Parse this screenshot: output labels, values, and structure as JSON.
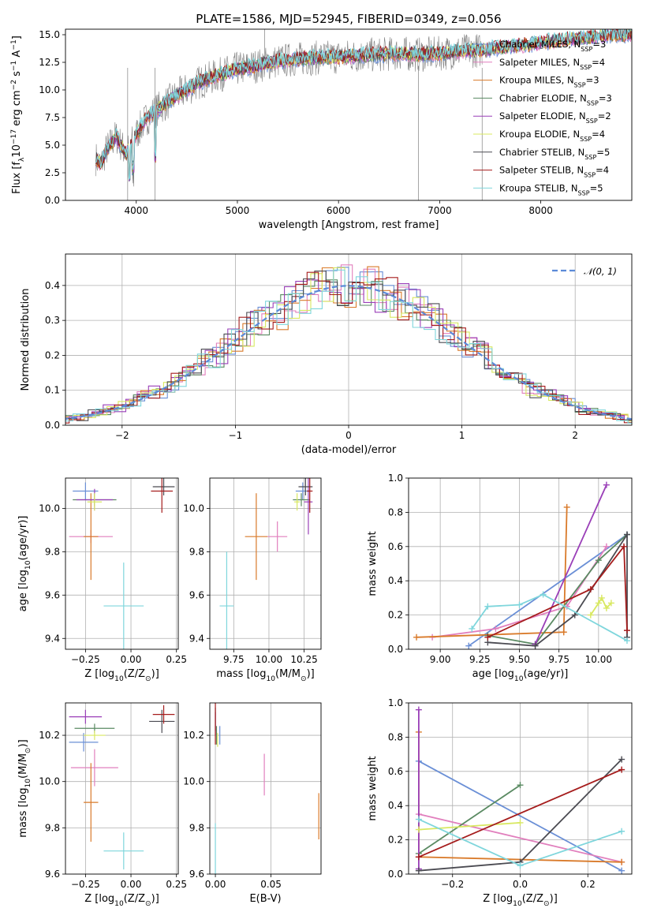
{
  "chart_data": [
    {
      "id": "spectrum",
      "type": "line",
      "title": "PLATE=1586, MJD=52945, FIBERID=0349, z=0.056",
      "xlabel": "wavelength [Angstrom, rest frame]",
      "ylabel": "Flux [f",
      "ylabel_sub": "λ",
      "ylabel_rest": "10",
      "ylabel_sup": "−17",
      "ylabel_tail": " erg cm",
      "ylabel_sup2": "−2",
      "ylabel_tail2": " s",
      "ylabel_sup3": "−1",
      "ylabel_tail3": " A",
      "ylabel_sup4": "−1",
      "ylabel_end": "]",
      "xlim": [
        3300,
        8900
      ],
      "ylim": [
        0,
        15.5
      ],
      "xticks": [
        4000,
        5000,
        6000,
        7000,
        8000
      ],
      "yticks": [
        0.0,
        2.5,
        5.0,
        7.5,
        10.0,
        12.5,
        15.0
      ],
      "legend_position": "right",
      "series": [
        {
          "name": "Chabrier MILES, N",
          "sub": "SSP",
          "tail": "=3",
          "color": "#6a8fd6"
        },
        {
          "name": "Salpeter MILES, N",
          "sub": "SSP",
          "tail": "=4",
          "color": "#e17fbd"
        },
        {
          "name": "Kroupa MILES, N",
          "sub": "SSP",
          "tail": "=3",
          "color": "#d97a2a"
        },
        {
          "name": "Chabrier ELODIE, N",
          "sub": "SSP",
          "tail": "=3",
          "color": "#5a8a62"
        },
        {
          "name": "Salpeter ELODIE, N",
          "sub": "SSP",
          "tail": "=2",
          "color": "#9a3fb8"
        },
        {
          "name": "Kroupa ELODIE, N",
          "sub": "SSP",
          "tail": "=4",
          "color": "#d8e860"
        },
        {
          "name": "Chabrier STELIB, N",
          "sub": "SSP",
          "tail": "=5",
          "color": "#4b4b52"
        },
        {
          "name": "Salpeter STELIB, N",
          "sub": "SSP",
          "tail": "=4",
          "color": "#a51c1c"
        },
        {
          "name": "Kroupa STELIB, N",
          "sub": "SSP",
          "tail": "=5",
          "color": "#7fd6dc"
        }
      ],
      "data_color": "#808080",
      "continuum": {
        "x": [
          3600,
          3650,
          3700,
          3800,
          3900,
          4000,
          4100,
          4200,
          4300,
          4400,
          4500,
          4600,
          4800,
          5000,
          5200,
          5400,
          5600,
          5800,
          6000,
          6200,
          6400,
          6600,
          6800,
          7000,
          7200,
          7400,
          7600,
          7800,
          8000,
          8200,
          8400,
          8600,
          8800
        ],
        "y": [
          3.8,
          3.2,
          4.5,
          5.8,
          4.2,
          6.0,
          7.4,
          8.2,
          8.8,
          9.5,
          10.0,
          10.6,
          11.3,
          11.9,
          12.2,
          12.6,
          12.8,
          12.9,
          13.0,
          13.1,
          13.2,
          13.3,
          13.2,
          13.3,
          13.5,
          13.6,
          13.8,
          14.0,
          14.3,
          14.5,
          14.7,
          14.9,
          15.0
        ]
      },
      "data_extent": [
        3600,
        7420
      ],
      "model_extent": [
        3600,
        8900
      ]
    },
    {
      "id": "residuals",
      "type": "histogram",
      "xlabel": "(data-model)/error",
      "ylabel": "Normed distribution",
      "xlim": [
        -2.5,
        2.5
      ],
      "ylim": [
        0,
        0.49
      ],
      "xticks": [
        -2,
        -1,
        0,
        1,
        2
      ],
      "xtick_labels": [
        "−2",
        "−1",
        "0",
        "1",
        "2"
      ],
      "yticks": [
        0.0,
        0.1,
        0.2,
        0.3,
        0.4
      ],
      "grid": true,
      "legend_position": "top-right",
      "legend": "𝒩(0, 1)",
      "normal_color": "#5b8ad8",
      "bin_width": 0.1
    },
    {
      "id": "age_vs_Z",
      "type": "scatter",
      "xlabel": "Z [log",
      "xlabel_sub": "10",
      "xlabel_tail": "(Z/Z",
      "xlabel_sub2": "⊙",
      "xlabel_end": ")]",
      "ylabel": "age  [log",
      "ylabel_sub": "10",
      "ylabel_tail": "(age/yr)]",
      "xlim": [
        -0.36,
        0.26
      ],
      "ylim": [
        9.35,
        10.14
      ],
      "xticks": [
        -0.25,
        0.0,
        0.25
      ],
      "xtick_labels": [
        "−0.25",
        "0.00",
        "0.25"
      ],
      "yticks": [
        9.4,
        9.6,
        9.8,
        10.0
      ],
      "grid": true,
      "points": [
        {
          "series": 0,
          "x": -0.25,
          "y": 10.08,
          "xerr": 0.07,
          "yerr": 0.04
        },
        {
          "series": 1,
          "x": -0.22,
          "y": 9.87,
          "xerr": 0.12,
          "yerr": 0.03
        },
        {
          "series": 2,
          "x": -0.22,
          "y": 9.87,
          "xerr": 0.04,
          "yerr": 0.2
        },
        {
          "series": 3,
          "x": -0.2,
          "y": 10.04,
          "xerr": 0.12,
          "yerr": 0.03
        },
        {
          "series": 4,
          "x": -0.2,
          "y": 10.04,
          "xerr": 0.1,
          "yerr": 0.05
        },
        {
          "series": 5,
          "x": -0.2,
          "y": 10.03,
          "xerr": 0.04,
          "yerr": 0.04
        },
        {
          "series": 6,
          "x": 0.18,
          "y": 10.1,
          "xerr": 0.06,
          "yerr": 0.04
        },
        {
          "series": 7,
          "x": 0.17,
          "y": 10.08,
          "xerr": 0.06,
          "yerr": 0.1
        },
        {
          "series": 8,
          "x": -0.04,
          "y": 9.55,
          "xerr": 0.11,
          "yerr": 0.2
        }
      ]
    },
    {
      "id": "age_vs_mass",
      "type": "scatter",
      "xlabel": "mass [log",
      "xlabel_sub": "10",
      "xlabel_tail": "(M/M",
      "xlabel_sub2": "⊙",
      "xlabel_end": ")]",
      "xlim": [
        9.58,
        10.37
      ],
      "ylim": [
        9.35,
        10.14
      ],
      "xticks": [
        9.75,
        10.0,
        10.25
      ],
      "xtick_labels": [
        "9.75",
        "10.00",
        "10.25"
      ],
      "yticks": [
        9.4,
        9.6,
        9.8,
        10.0
      ],
      "grid": true,
      "points": [
        {
          "series": 0,
          "x": 10.24,
          "y": 10.08,
          "xerr": 0.05,
          "yerr": 0.04
        },
        {
          "series": 1,
          "x": 10.06,
          "y": 9.87,
          "xerr": 0.07,
          "yerr": 0.07
        },
        {
          "series": 2,
          "x": 9.91,
          "y": 9.87,
          "xerr": 0.08,
          "yerr": 0.2
        },
        {
          "series": 3,
          "x": 10.23,
          "y": 10.04,
          "xerr": 0.06,
          "yerr": 0.03
        },
        {
          "series": 4,
          "x": 10.28,
          "y": 10.03,
          "xerr": 0.03,
          "yerr": 0.15
        },
        {
          "series": 5,
          "x": 10.2,
          "y": 10.03,
          "xerr": 0.02,
          "yerr": 0.04
        },
        {
          "series": 6,
          "x": 10.26,
          "y": 10.1,
          "xerr": 0.05,
          "yerr": 0.04
        },
        {
          "series": 7,
          "x": 10.29,
          "y": 10.08,
          "xerr": 0.02,
          "yerr": 0.1
        },
        {
          "series": 8,
          "x": 9.7,
          "y": 9.55,
          "xerr": 0.05,
          "yerr": 0.25
        }
      ]
    },
    {
      "id": "weight_vs_age",
      "type": "line",
      "xlabel": "age  [log",
      "xlabel_sub": "10",
      "xlabel_tail": "(age/yr)]",
      "ylabel": "mass weight",
      "xlim": [
        8.8,
        10.21
      ],
      "ylim": [
        0,
        1
      ],
      "xticks": [
        9.0,
        9.25,
        9.5,
        9.75,
        10.0
      ],
      "xtick_labels": [
        "9.00",
        "9.25",
        "9.50",
        "9.75",
        "10.00"
      ],
      "yticks": [
        0.0,
        0.2,
        0.4,
        0.6,
        0.8,
        1.0
      ],
      "grid": true,
      "series": [
        {
          "series": 0,
          "x": [
            9.18,
            10.18
          ],
          "y": [
            0.02,
            0.67
          ]
        },
        {
          "series": 1,
          "x": [
            8.95,
            9.35,
            9.8,
            10.05
          ],
          "y": [
            0.07,
            0.12,
            0.25,
            0.6
          ]
        },
        {
          "series": 2,
          "x": [
            8.85,
            9.78,
            9.78,
            9.8
          ],
          "y": [
            0.07,
            0.1,
            0.1,
            0.83
          ]
        },
        {
          "series": 3,
          "x": [
            9.3,
            9.6,
            10.0,
            10.18
          ],
          "y": [
            0.08,
            0.03,
            0.52,
            0.67
          ]
        },
        {
          "series": 4,
          "x": [
            9.6,
            10.05
          ],
          "y": [
            0.03,
            0.96
          ]
        },
        {
          "series": 5,
          "x": [
            9.95,
            10.0,
            10.02,
            10.05,
            10.08
          ],
          "y": [
            0.2,
            0.27,
            0.3,
            0.24,
            0.27
          ]
        },
        {
          "series": 6,
          "x": [
            9.3,
            9.6,
            9.85,
            10.18,
            10.18
          ],
          "y": [
            0.04,
            0.02,
            0.2,
            0.67,
            0.07
          ]
        },
        {
          "series": 7,
          "x": [
            9.3,
            9.95,
            10.16,
            10.18
          ],
          "y": [
            0.07,
            0.35,
            0.6,
            0.11
          ]
        },
        {
          "series": 8,
          "x": [
            9.2,
            9.3,
            9.5,
            9.65,
            10.18
          ],
          "y": [
            0.12,
            0.25,
            0.26,
            0.32,
            0.05
          ]
        }
      ]
    },
    {
      "id": "mass_vs_Z",
      "type": "scatter",
      "xlabel": "Z [log",
      "xlabel_sub": "10",
      "xlabel_tail": "(Z/Z",
      "xlabel_sub2": "⊙",
      "xlabel_end": ")]",
      "ylabel": "mass [log",
      "ylabel_sub": "10",
      "ylabel_tail": "(M/M",
      "ylabel_sub2": "⊙",
      "ylabel_end": ")]",
      "xlim": [
        -0.36,
        0.26
      ],
      "ylim": [
        9.6,
        10.34
      ],
      "xticks": [
        -0.25,
        0.0,
        0.25
      ],
      "xtick_labels": [
        "−0.25",
        "0.00",
        "0.25"
      ],
      "yticks": [
        9.6,
        9.8,
        10.0,
        10.2
      ],
      "grid": true,
      "points": [
        {
          "series": 0,
          "x": -0.26,
          "y": 10.17,
          "xerr": 0.08,
          "yerr": 0.04
        },
        {
          "series": 1,
          "x": -0.2,
          "y": 10.06,
          "xerr": 0.13,
          "yerr": 0.08
        },
        {
          "series": 2,
          "x": -0.22,
          "y": 9.91,
          "xerr": 0.04,
          "yerr": 0.17
        },
        {
          "series": 3,
          "x": -0.2,
          "y": 10.23,
          "xerr": 0.11,
          "yerr": 0.02
        },
        {
          "series": 4,
          "x": -0.25,
          "y": 10.28,
          "xerr": 0.09,
          "yerr": 0.03
        },
        {
          "series": 5,
          "x": -0.2,
          "y": 10.2,
          "xerr": 0.06,
          "yerr": 0.02
        },
        {
          "series": 6,
          "x": 0.17,
          "y": 10.26,
          "xerr": 0.07,
          "yerr": 0.05
        },
        {
          "series": 7,
          "x": 0.18,
          "y": 10.29,
          "xerr": 0.06,
          "yerr": 0.04
        },
        {
          "series": 8,
          "x": -0.04,
          "y": 9.7,
          "xerr": 0.11,
          "yerr": 0.08
        }
      ]
    },
    {
      "id": "mass_vs_ebv",
      "type": "scatter",
      "xlabel": "E(B-V)",
      "xlim": [
        -0.005,
        0.095
      ],
      "ylim": [
        9.6,
        10.34
      ],
      "xticks": [
        0.0,
        0.05
      ],
      "xtick_labels": [
        "0.00",
        "0.05"
      ],
      "yticks": [
        9.6,
        9.8,
        10.0,
        10.2
      ],
      "grid": true,
      "points": [
        {
          "series": 0,
          "x": 0.004,
          "y": 10.2,
          "yerr": 0.04
        },
        {
          "series": 1,
          "x": 0.044,
          "y": 10.03,
          "yerr": 0.09
        },
        {
          "series": 2,
          "x": 0.093,
          "y": 9.85,
          "yerr": 0.1
        },
        {
          "series": 3,
          "x": 0.001,
          "y": 10.2,
          "yerr": 0.04
        },
        {
          "series": 4,
          "x": 0.0,
          "y": 10.25,
          "yerr": 0.05
        },
        {
          "series": 5,
          "x": 0.002,
          "y": 10.18,
          "yerr": 0.03
        },
        {
          "series": 6,
          "x": 0.0,
          "y": 10.27,
          "yerr": 0.05
        },
        {
          "series": 7,
          "x": 0.0,
          "y": 10.25,
          "yerr": 0.09
        },
        {
          "series": 8,
          "x": 0.0,
          "y": 9.7,
          "yerr": 0.12
        }
      ]
    },
    {
      "id": "weight_vs_Z",
      "type": "line",
      "xlabel": "Z [log",
      "xlabel_sub": "10",
      "xlabel_tail": "(Z/Z",
      "xlabel_sub2": "⊙",
      "xlabel_end": ")]",
      "ylabel": "mass weight",
      "xlim": [
        -0.33,
        0.33
      ],
      "ylim": [
        0,
        1
      ],
      "xticks": [
        -0.2,
        0.0,
        0.2
      ],
      "xtick_labels": [
        "−0.2",
        "0.0",
        "0.2"
      ],
      "yticks": [
        0.0,
        0.2,
        0.4,
        0.6,
        0.8,
        1.0
      ],
      "grid": true,
      "series": [
        {
          "series": 0,
          "x": [
            -0.3,
            0.3
          ],
          "y": [
            0.66,
            0.02
          ]
        },
        {
          "series": 1,
          "x": [
            -0.3,
            0.3
          ],
          "y": [
            0.35,
            0.07
          ]
        },
        {
          "series": 2,
          "x": [
            -0.3,
            -0.3,
            0.3
          ],
          "y": [
            0.83,
            0.1,
            0.07
          ]
        },
        {
          "series": 3,
          "x": [
            -0.3,
            0.0
          ],
          "y": [
            0.12,
            0.52
          ]
        },
        {
          "series": 4,
          "x": [
            -0.3,
            -0.3
          ],
          "y": [
            0.96,
            0.03
          ]
        },
        {
          "series": 5,
          "x": [
            -0.3,
            0.0
          ],
          "y": [
            0.26,
            0.3
          ]
        },
        {
          "series": 6,
          "x": [
            -0.3,
            0.0,
            0.3
          ],
          "y": [
            0.02,
            0.07,
            0.67
          ]
        },
        {
          "series": 7,
          "x": [
            -0.3,
            0.3
          ],
          "y": [
            0.1,
            0.61
          ]
        },
        {
          "series": 8,
          "x": [
            -0.3,
            0.0,
            0.3
          ],
          "y": [
            0.32,
            0.05,
            0.25
          ]
        }
      ]
    }
  ]
}
